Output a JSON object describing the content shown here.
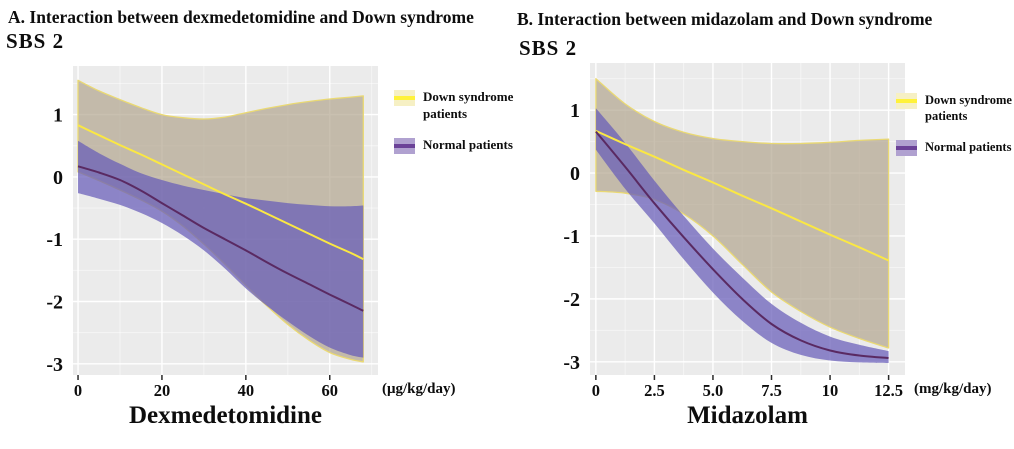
{
  "figure": {
    "background": "#ffffff",
    "panel_background": "#ebebeb",
    "gridline_color": "#ffffff"
  },
  "chart_data": [
    {
      "type": "line",
      "panel_id": "A",
      "title": "A. Interaction between dexmedetomidine and Down syndrome",
      "y_axis_title": "SBS 2",
      "x_axis_title": "Dexmedetomidine",
      "x_unit_label": "(μg/kg/day)",
      "xlim": [
        -1.2,
        71.5
      ],
      "ylim": [
        -3.18,
        1.78
      ],
      "x_ticks": [
        0,
        20,
        40,
        60
      ],
      "x_tick_labels": [
        "0",
        "20",
        "40",
        "60"
      ],
      "x_minor_ticks": [
        10,
        30,
        50,
        70
      ],
      "y_ticks": [
        1,
        0,
        -1,
        -2,
        -3
      ],
      "y_tick_labels": [
        "1",
        "0",
        "-1",
        "-2",
        "-3"
      ],
      "y_minor_ticks": [
        1.5,
        0.5,
        -0.5,
        -1.5,
        -2.5
      ],
      "x": [
        0,
        5,
        10,
        15,
        20,
        25,
        30,
        35,
        40,
        45,
        50,
        55,
        60,
        65,
        68
      ],
      "series": [
        {
          "name": "Down syndrome patients CI",
          "role": "band",
          "fill": "rgba(178,165,143,0.70)",
          "stroke": "#ead973",
          "upper": [
            1.55,
            1.38,
            1.24,
            1.11,
            1.0,
            0.95,
            0.93,
            0.96,
            1.03,
            1.1,
            1.16,
            1.21,
            1.25,
            1.28,
            1.3
          ],
          "lower": [
            0.08,
            -0.06,
            -0.21,
            -0.37,
            -0.55,
            -0.79,
            -1.08,
            -1.4,
            -1.74,
            -2.07,
            -2.37,
            -2.62,
            -2.82,
            -2.93,
            -2.97
          ]
        },
        {
          "name": "Normal patients CI",
          "role": "band",
          "fill": "rgba(103,92,184,0.72)",
          "stroke": "none",
          "upper": [
            0.58,
            0.38,
            0.21,
            0.06,
            -0.05,
            -0.14,
            -0.21,
            -0.28,
            -0.34,
            -0.38,
            -0.42,
            -0.45,
            -0.47,
            -0.47,
            -0.46
          ],
          "lower": [
            -0.26,
            -0.35,
            -0.45,
            -0.58,
            -0.74,
            -0.94,
            -1.18,
            -1.47,
            -1.79,
            -2.07,
            -2.32,
            -2.55,
            -2.74,
            -2.86,
            -2.9
          ]
        },
        {
          "name": "Down syndrome patients",
          "role": "mean",
          "color": "#fbe842",
          "values": [
            0.83,
            0.67,
            0.51,
            0.36,
            0.2,
            0.04,
            -0.12,
            -0.28,
            -0.43,
            -0.59,
            -0.75,
            -0.91,
            -1.07,
            -1.22,
            -1.32
          ]
        },
        {
          "name": "Normal patients",
          "role": "mean",
          "color": "#5a2a62",
          "values": [
            0.17,
            0.07,
            -0.05,
            -0.22,
            -0.42,
            -0.62,
            -0.82,
            -1.0,
            -1.18,
            -1.37,
            -1.55,
            -1.72,
            -1.89,
            -2.05,
            -2.15
          ]
        }
      ],
      "legend": [
        {
          "label": "Down syndrome patients",
          "fill": "#f6f0c4",
          "line": "#fff23a"
        },
        {
          "label": "Normal patients",
          "fill": "#b0a1d0",
          "line": "#6b4298"
        }
      ]
    },
    {
      "type": "line",
      "panel_id": "B",
      "title": "B. Interaction between midazolam and Down syndrome",
      "y_axis_title": "SBS 2",
      "x_axis_title": "Midazolam",
      "x_unit_label": "(mg/kg/day)",
      "xlim": [
        -0.25,
        13.2
      ],
      "ylim": [
        -3.21,
        1.75
      ],
      "x_ticks": [
        0,
        2.5,
        5,
        7.5,
        10,
        12.5
      ],
      "x_tick_labels": [
        "0",
        "2.5",
        "5.0",
        "7.5",
        "10",
        "12.5"
      ],
      "x_minor_ticks": [
        1.25,
        3.75,
        6.25,
        8.75,
        11.25
      ],
      "y_ticks": [
        1,
        0,
        -1,
        -2,
        -3
      ],
      "y_tick_labels": [
        "1",
        "0",
        "-1",
        "-2",
        "-3"
      ],
      "y_minor_ticks": [
        1.5,
        0.5,
        -0.5,
        -1.5,
        -2.5
      ],
      "x": [
        0,
        1.25,
        2.5,
        3.75,
        5,
        6.25,
        7.5,
        8.75,
        10,
        11.25,
        12.5
      ],
      "series": [
        {
          "name": "Down syndrome patients CI",
          "role": "band",
          "fill": "rgba(178,165,143,0.70)",
          "stroke": "#ead973",
          "upper": [
            1.5,
            1.1,
            0.82,
            0.65,
            0.55,
            0.5,
            0.47,
            0.47,
            0.49,
            0.52,
            0.54
          ],
          "lower": [
            -0.29,
            -0.32,
            -0.42,
            -0.65,
            -1.0,
            -1.45,
            -1.89,
            -2.2,
            -2.45,
            -2.63,
            -2.78
          ]
        },
        {
          "name": "Normal patients CI",
          "role": "band",
          "fill": "rgba(103,92,184,0.72)",
          "stroke": "none",
          "upper": [
            1.03,
            0.48,
            -0.12,
            -0.68,
            -1.2,
            -1.66,
            -2.08,
            -2.38,
            -2.6,
            -2.73,
            -2.83
          ],
          "lower": [
            0.37,
            -0.25,
            -0.8,
            -1.37,
            -1.9,
            -2.35,
            -2.7,
            -2.89,
            -2.98,
            -3.01,
            -3.02
          ]
        },
        {
          "name": "Down syndrome patients",
          "role": "mean",
          "color": "#fbe842",
          "values": [
            0.67,
            0.46,
            0.26,
            0.05,
            -0.15,
            -0.36,
            -0.56,
            -0.77,
            -0.98,
            -1.18,
            -1.39
          ]
        },
        {
          "name": "Normal patients",
          "role": "mean",
          "color": "#5a2a62",
          "values": [
            0.66,
            0.1,
            -0.48,
            -1.02,
            -1.53,
            -2.0,
            -2.4,
            -2.66,
            -2.82,
            -2.9,
            -2.94
          ]
        }
      ],
      "legend": [
        {
          "label": "Down syndrome patients",
          "fill": "#f6f0c4",
          "line": "#fff23a"
        },
        {
          "label": "Normal patients",
          "fill": "#b0a1d0",
          "line": "#6b4298"
        }
      ]
    }
  ]
}
